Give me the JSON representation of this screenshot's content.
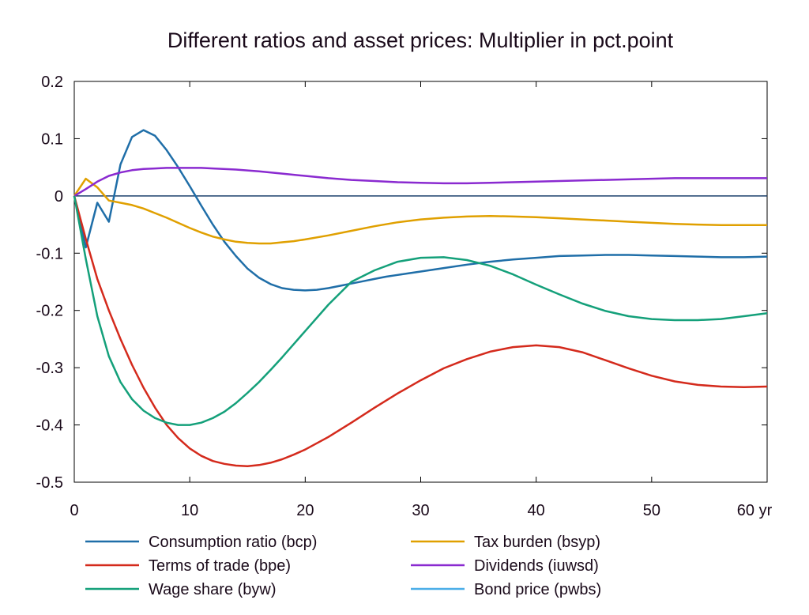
{
  "chart_data": {
    "type": "line",
    "title": "Different ratios and asset prices: Multiplier in pct.point",
    "x_unit_label": "yr",
    "xlim": [
      0,
      60
    ],
    "ylim": [
      -0.5,
      0.2
    ],
    "x_ticks": [
      0,
      10,
      20,
      30,
      40,
      50,
      60
    ],
    "x_tick_labels": [
      "0",
      "10",
      "20",
      "30",
      "40",
      "50",
      "60 yr"
    ],
    "y_ticks": [
      0.2,
      0.1,
      0,
      -0.1,
      -0.2,
      -0.3,
      -0.4,
      -0.5
    ],
    "y_tick_labels": [
      "0.2",
      "0.1",
      "0",
      "-0.1",
      "-0.2",
      "-0.3",
      "-0.4",
      "-0.5"
    ],
    "grid": false,
    "legend_position": "bottom",
    "series": [
      {
        "name": "Consumption ratio (bcp)",
        "color": "#1f6ea8",
        "x": [
          0,
          1,
          2,
          3,
          4,
          5,
          6,
          7,
          8,
          9,
          10,
          11,
          12,
          13,
          14,
          15,
          16,
          17,
          18,
          19,
          20,
          21,
          22,
          23,
          24,
          25,
          26,
          27,
          28,
          29,
          30,
          32,
          34,
          36,
          38,
          40,
          42,
          44,
          46,
          48,
          50,
          52,
          54,
          56,
          58,
          60
        ],
        "y": [
          0,
          -0.09,
          -0.012,
          -0.045,
          0.055,
          0.103,
          0.115,
          0.105,
          0.08,
          0.05,
          0.017,
          -0.017,
          -0.05,
          -0.08,
          -0.105,
          -0.127,
          -0.143,
          -0.154,
          -0.161,
          -0.164,
          -0.165,
          -0.164,
          -0.161,
          -0.157,
          -0.153,
          -0.149,
          -0.145,
          -0.141,
          -0.138,
          -0.135,
          -0.132,
          -0.126,
          -0.12,
          -0.115,
          -0.111,
          -0.108,
          -0.105,
          -0.104,
          -0.103,
          -0.103,
          -0.104,
          -0.105,
          -0.106,
          -0.107,
          -0.107,
          -0.106
        ]
      },
      {
        "name": "Tax burden (bsyp)",
        "color": "#e0a000",
        "x": [
          0,
          1,
          2,
          3,
          4,
          5,
          6,
          7,
          8,
          9,
          10,
          11,
          12,
          13,
          14,
          15,
          16,
          17,
          18,
          19,
          20,
          22,
          24,
          26,
          28,
          30,
          32,
          34,
          36,
          38,
          40,
          42,
          44,
          46,
          48,
          50,
          52,
          54,
          56,
          58,
          60
        ],
        "y": [
          0,
          0.03,
          0.015,
          -0.008,
          -0.012,
          -0.016,
          -0.022,
          -0.03,
          -0.038,
          -0.047,
          -0.056,
          -0.064,
          -0.071,
          -0.076,
          -0.08,
          -0.082,
          -0.083,
          -0.083,
          -0.081,
          -0.079,
          -0.076,
          -0.069,
          -0.061,
          -0.053,
          -0.046,
          -0.041,
          -0.038,
          -0.036,
          -0.035,
          -0.036,
          -0.037,
          -0.039,
          -0.041,
          -0.043,
          -0.045,
          -0.047,
          -0.049,
          -0.05,
          -0.051,
          -0.051,
          -0.051
        ]
      },
      {
        "name": "Terms of trade (bpe)",
        "color": "#d42a1c",
        "x": [
          0,
          1,
          2,
          3,
          4,
          5,
          6,
          7,
          8,
          9,
          10,
          11,
          12,
          13,
          14,
          15,
          16,
          17,
          18,
          19,
          20,
          22,
          24,
          26,
          28,
          30,
          32,
          34,
          36,
          38,
          40,
          42,
          44,
          46,
          48,
          50,
          52,
          54,
          56,
          58,
          60
        ],
        "y": [
          0,
          -0.075,
          -0.145,
          -0.2,
          -0.25,
          -0.295,
          -0.335,
          -0.37,
          -0.4,
          -0.423,
          -0.441,
          -0.454,
          -0.463,
          -0.468,
          -0.471,
          -0.472,
          -0.47,
          -0.466,
          -0.46,
          -0.452,
          -0.443,
          -0.421,
          -0.396,
          -0.37,
          -0.345,
          -0.322,
          -0.301,
          -0.285,
          -0.272,
          -0.264,
          -0.261,
          -0.264,
          -0.273,
          -0.287,
          -0.301,
          -0.314,
          -0.324,
          -0.33,
          -0.333,
          -0.334,
          -0.333
        ]
      },
      {
        "name": "Dividends (iuwsd)",
        "color": "#8a2ad0",
        "x": [
          0,
          1,
          2,
          3,
          4,
          5,
          6,
          7,
          8,
          9,
          10,
          11,
          12,
          14,
          16,
          18,
          20,
          22,
          24,
          26,
          28,
          30,
          32,
          34,
          36,
          38,
          40,
          42,
          44,
          46,
          48,
          50,
          52,
          54,
          56,
          58,
          60
        ],
        "y": [
          0,
          0.012,
          0.025,
          0.035,
          0.041,
          0.045,
          0.047,
          0.048,
          0.049,
          0.049,
          0.049,
          0.049,
          0.048,
          0.046,
          0.043,
          0.039,
          0.035,
          0.031,
          0.028,
          0.026,
          0.024,
          0.023,
          0.022,
          0.022,
          0.023,
          0.024,
          0.025,
          0.026,
          0.027,
          0.028,
          0.029,
          0.03,
          0.031,
          0.031,
          0.031,
          0.031,
          0.031
        ]
      },
      {
        "name": "Wage share (byw)",
        "color": "#14a07a",
        "x": [
          0,
          1,
          2,
          3,
          4,
          5,
          6,
          7,
          8,
          9,
          10,
          11,
          12,
          13,
          14,
          15,
          16,
          17,
          18,
          19,
          20,
          22,
          24,
          26,
          28,
          30,
          32,
          34,
          36,
          38,
          40,
          42,
          44,
          46,
          48,
          50,
          52,
          54,
          56,
          58,
          60
        ],
        "y": [
          0,
          -0.11,
          -0.21,
          -0.28,
          -0.325,
          -0.355,
          -0.375,
          -0.388,
          -0.396,
          -0.4,
          -0.4,
          -0.396,
          -0.388,
          -0.377,
          -0.362,
          -0.344,
          -0.325,
          -0.304,
          -0.282,
          -0.259,
          -0.236,
          -0.19,
          -0.15,
          -0.13,
          -0.115,
          -0.108,
          -0.107,
          -0.112,
          -0.122,
          -0.137,
          -0.155,
          -0.172,
          -0.188,
          -0.201,
          -0.21,
          -0.215,
          -0.217,
          -0.217,
          -0.215,
          -0.21,
          -0.205
        ]
      },
      {
        "name": "Bond price (pwbs)",
        "color": "#4aaee8",
        "x": [
          0,
          60
        ],
        "y": [
          0,
          0
        ]
      }
    ],
    "reference_line": {
      "y": 0,
      "color": "#1a3f6b"
    }
  }
}
